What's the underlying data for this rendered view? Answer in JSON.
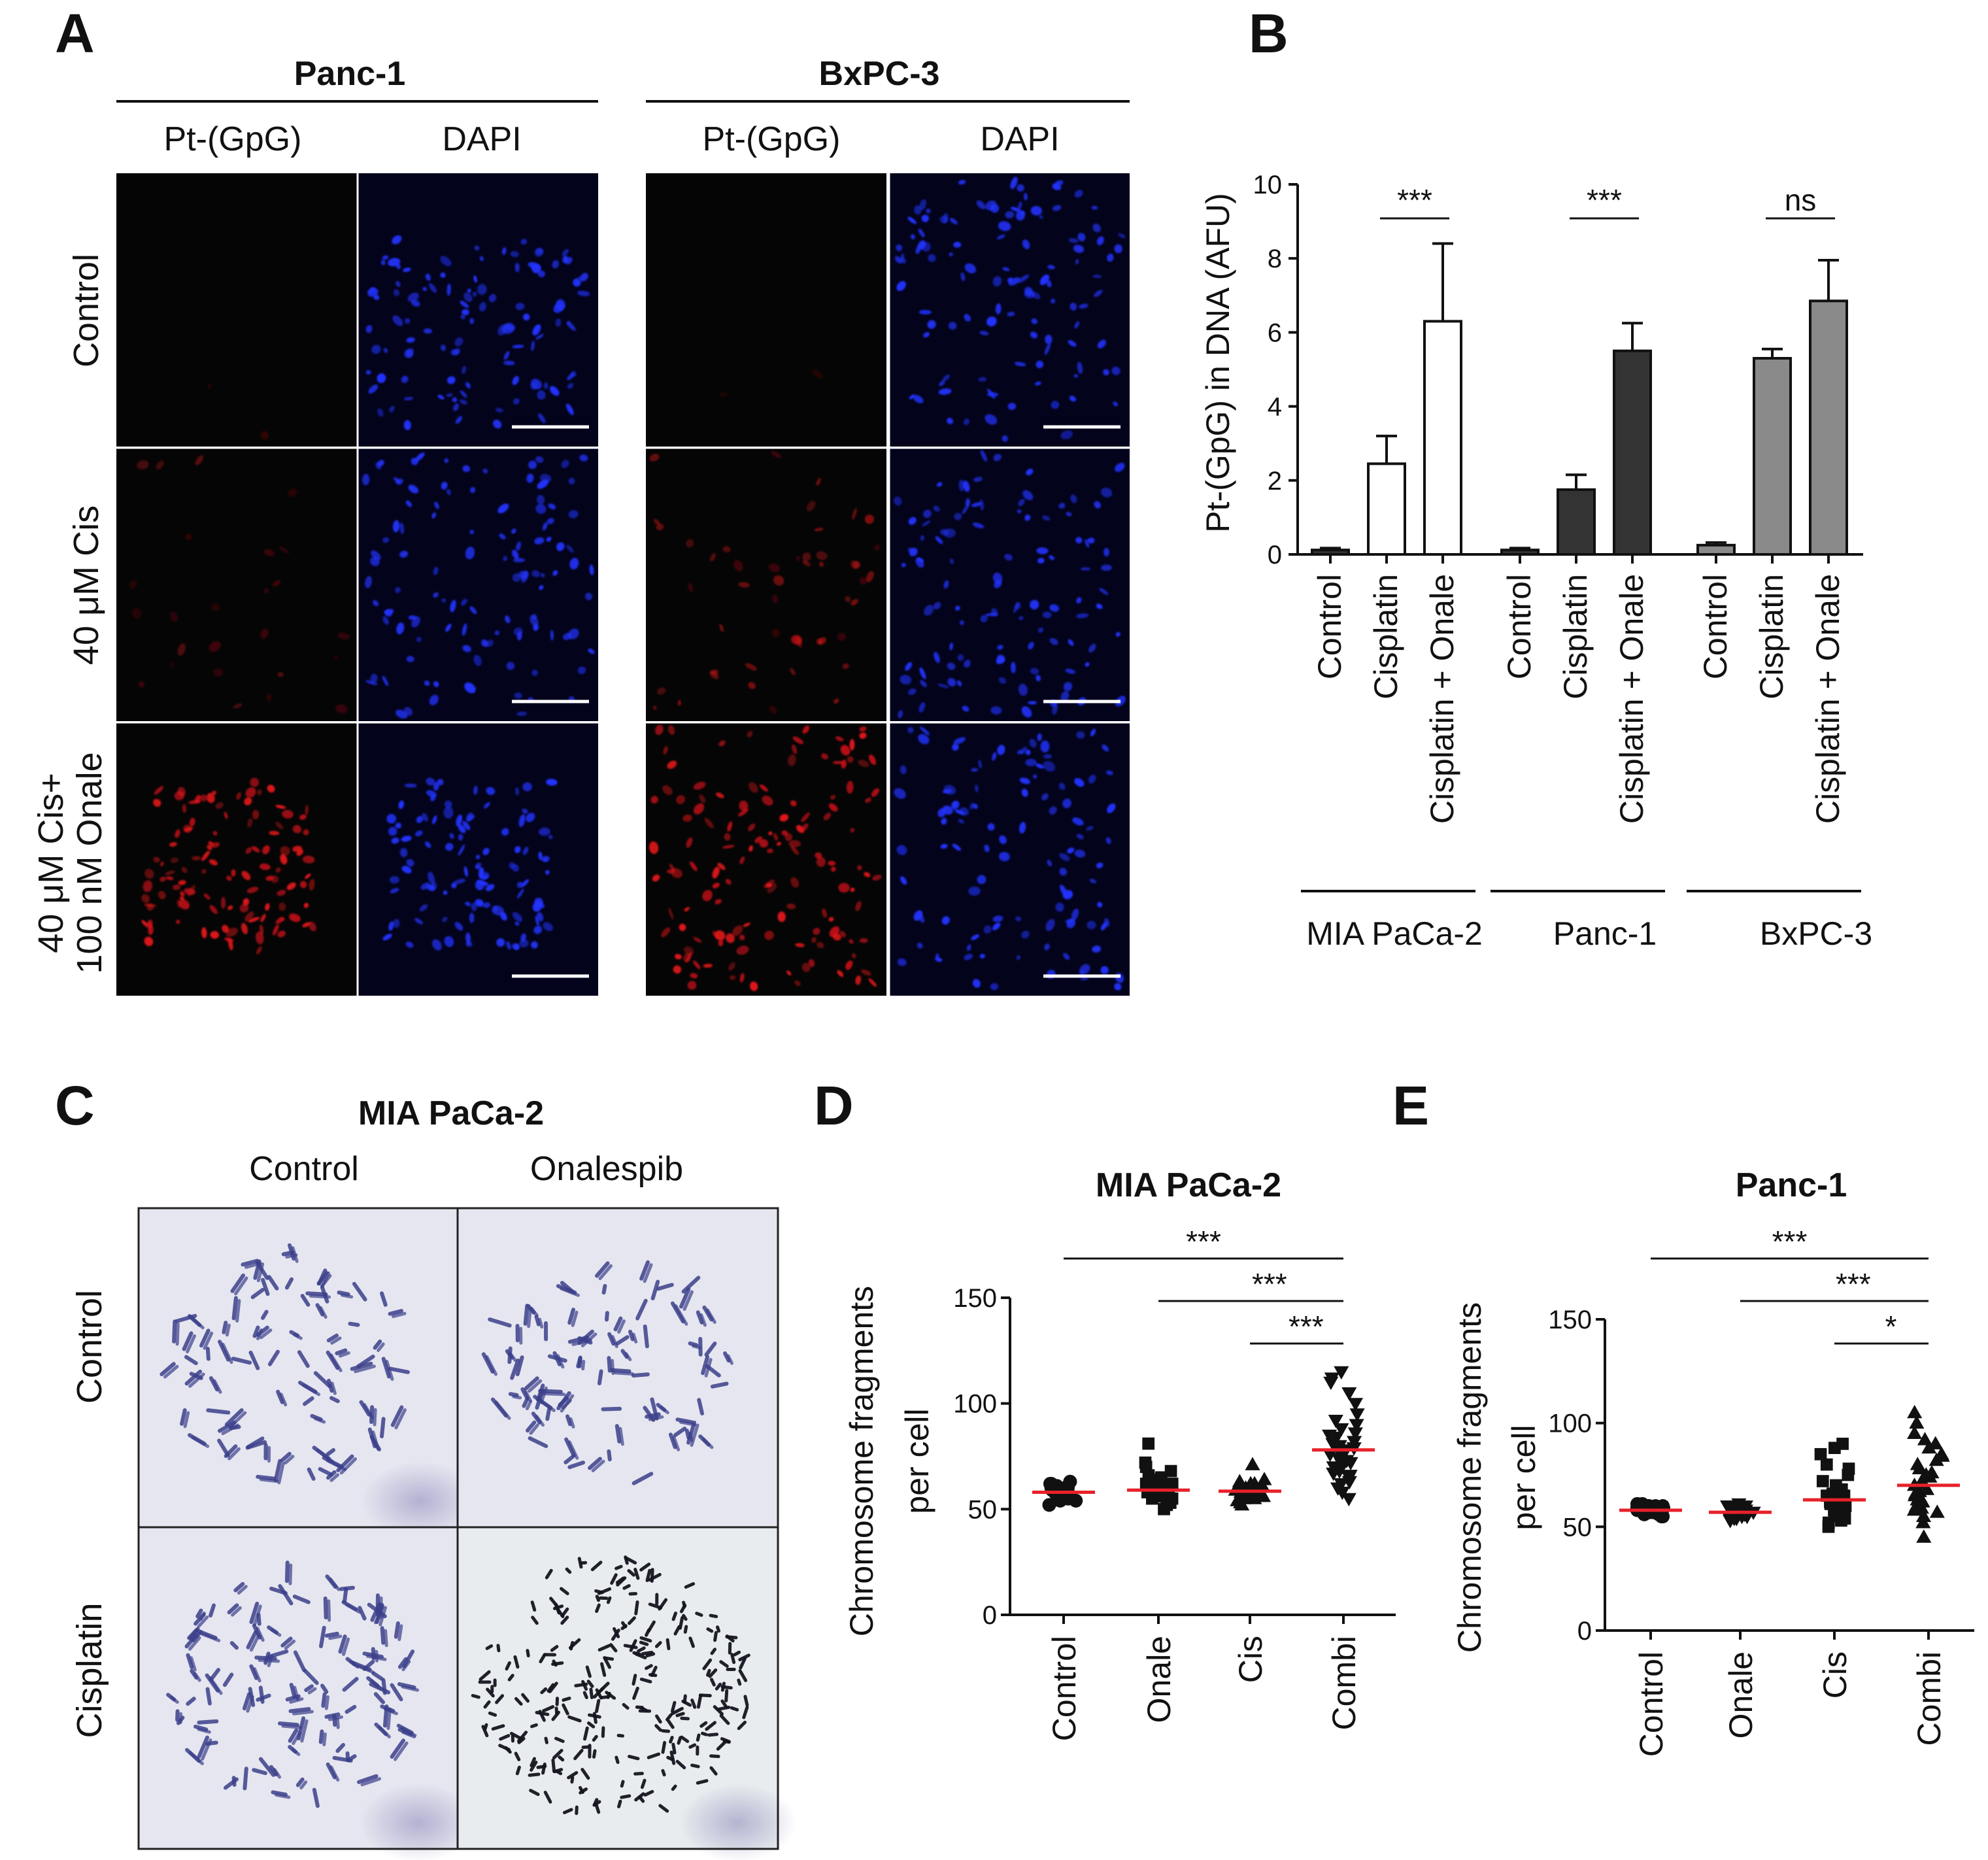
{
  "panel_A": {
    "letter": "A",
    "cell_lines": [
      "Panc-1",
      "BxPC-3"
    ],
    "stains": [
      "Pt-(GpG)",
      "DAPI"
    ],
    "rows": [
      {
        "label_lines": [
          "Control"
        ],
        "signal": 0.02
      },
      {
        "label_lines": [
          "40 μM Cis"
        ],
        "signal": 0.35
      },
      {
        "label_lines": [
          "40 μM Cis+",
          "100 nM Onale"
        ],
        "signal": 1.0
      }
    ],
    "colors": {
      "pt": "#e0141a",
      "dapi": "#2233ff",
      "bg_dark": "#050505",
      "bg_navy": "#03031c"
    }
  },
  "panel_C": {
    "letter": "C",
    "title": "MIA PaCa-2",
    "col_labels": [
      "Control",
      "Onalespib"
    ],
    "row_labels": [
      "Control",
      "Cisplatin"
    ],
    "colors": {
      "spread": "#3b3f8a",
      "spread_dark": "#15151f",
      "bg": "#e6e6f0"
    }
  },
  "chart_data": [
    {
      "panel": "B",
      "type": "bar",
      "ylabel": "Pt-(GpG) in DNA (AFU)",
      "ylim": [
        0,
        10
      ],
      "yticks": [
        0,
        2,
        4,
        6,
        8,
        10
      ],
      "groups": [
        {
          "name": "MIA PaCa-2",
          "fill": "#ffffff",
          "bars": [
            {
              "label": "Control",
              "value": 0.12,
              "err": 0.05,
              "fill": "#333333"
            },
            {
              "label": "Cisplatin",
              "value": 2.45,
              "err": 0.75
            },
            {
              "label": "Cisplatin + Onale",
              "value": 6.3,
              "err": 2.1
            }
          ],
          "sig": "***"
        },
        {
          "name": "Panc-1",
          "fill": "#333333",
          "bars": [
            {
              "label": "Control",
              "value": 0.12,
              "err": 0.05
            },
            {
              "label": "Cisplatin",
              "value": 1.75,
              "err": 0.4
            },
            {
              "label": "Cisplatin + Onale",
              "value": 5.5,
              "err": 0.75
            }
          ],
          "sig": "***"
        },
        {
          "name": "BxPC-3",
          "fill": "#8a8a8a",
          "bars": [
            {
              "label": "Control",
              "value": 0.25,
              "err": 0.07
            },
            {
              "label": "Cisplatin",
              "value": 5.3,
              "err": 0.25
            },
            {
              "label": "Cisplatin + Onale",
              "value": 6.85,
              "err": 1.1
            }
          ],
          "sig": "ns"
        }
      ]
    },
    {
      "panel": "D",
      "type": "scatter",
      "title": "MIA PaCa-2",
      "ylabel": "Chromosome fragments per cell",
      "ylim": [
        0,
        150
      ],
      "yticks": [
        0,
        50,
        100,
        150
      ],
      "categories": [
        "Control",
        "Onale",
        "Cis",
        "Combi"
      ],
      "markers": [
        "circle",
        "square",
        "triangle",
        "triangle-down"
      ],
      "means": [
        58,
        59,
        58.5,
        78
      ],
      "points": [
        [
          56,
          58,
          60,
          54,
          62,
          57,
          59,
          61,
          55,
          58,
          63,
          52,
          57,
          60,
          59,
          56,
          58,
          61,
          55,
          57,
          60,
          62,
          54,
          58,
          59
        ],
        [
          55,
          62,
          58,
          70,
          50,
          65,
          59,
          56,
          72,
          60,
          52,
          64,
          57,
          81,
          61,
          55,
          68,
          58,
          53,
          63,
          60,
          57,
          66,
          59,
          62
        ],
        [
          55,
          58,
          62,
          52,
          60,
          57,
          64,
          54,
          59,
          61,
          56,
          58,
          63,
          55,
          60,
          57,
          59,
          71,
          53,
          62,
          58,
          56,
          61,
          59,
          57
        ],
        [
          60,
          65,
          72,
          80,
          85,
          90,
          68,
          75,
          78,
          95,
          100,
          55,
          62,
          70,
          74,
          82,
          88,
          110,
          115,
          67,
          73,
          77,
          63,
          69,
          84,
          92,
          58,
          71,
          76,
          79,
          105,
          112,
          66,
          81,
          86
        ]
      ],
      "comparisons": [
        {
          "from": 0,
          "to": 3,
          "label": "***"
        },
        {
          "from": 1,
          "to": 3,
          "label": "***"
        },
        {
          "from": 2,
          "to": 3,
          "label": "***"
        }
      ]
    },
    {
      "panel": "E",
      "type": "scatter",
      "title": "Panc-1",
      "ylabel": "Chromosome fragments per cell",
      "ylim": [
        0,
        150
      ],
      "yticks": [
        0,
        50,
        100,
        150
      ],
      "categories": [
        "Control",
        "Onale",
        "Cis",
        "Combi"
      ],
      "markers": [
        "circle",
        "triangle-down",
        "square",
        "triangle"
      ],
      "means": [
        58,
        57,
        63,
        70
      ],
      "points": [
        [
          56,
          58,
          60,
          57,
          59,
          55,
          61,
          58,
          57,
          60,
          56,
          59,
          58,
          57,
          61,
          55,
          59,
          60,
          58,
          57,
          56,
          59,
          60,
          58,
          57
        ],
        [
          54,
          57,
          59,
          55,
          58,
          60,
          56,
          53,
          58,
          61,
          57,
          55,
          59,
          56,
          58,
          54,
          60,
          57,
          55,
          59,
          58,
          56,
          57,
          60,
          55
        ],
        [
          52,
          55,
          58,
          60,
          62,
          65,
          68,
          70,
          75,
          80,
          85,
          90,
          57,
          59,
          61,
          63,
          66,
          54,
          56,
          64,
          67,
          72,
          78,
          50,
          53,
          58,
          60,
          62,
          88,
          65
        ],
        [
          52,
          55,
          60,
          65,
          70,
          75,
          80,
          85,
          90,
          95,
          100,
          105,
          58,
          62,
          68,
          72,
          78,
          45,
          57,
          63,
          66,
          74,
          82,
          88,
          92,
          67,
          71,
          59,
          76,
          84
        ]
      ],
      "comparisons": [
        {
          "from": 0,
          "to": 3,
          "label": "***"
        },
        {
          "from": 1,
          "to": 3,
          "label": "***"
        },
        {
          "from": 2,
          "to": 3,
          "label": "*"
        }
      ]
    }
  ]
}
